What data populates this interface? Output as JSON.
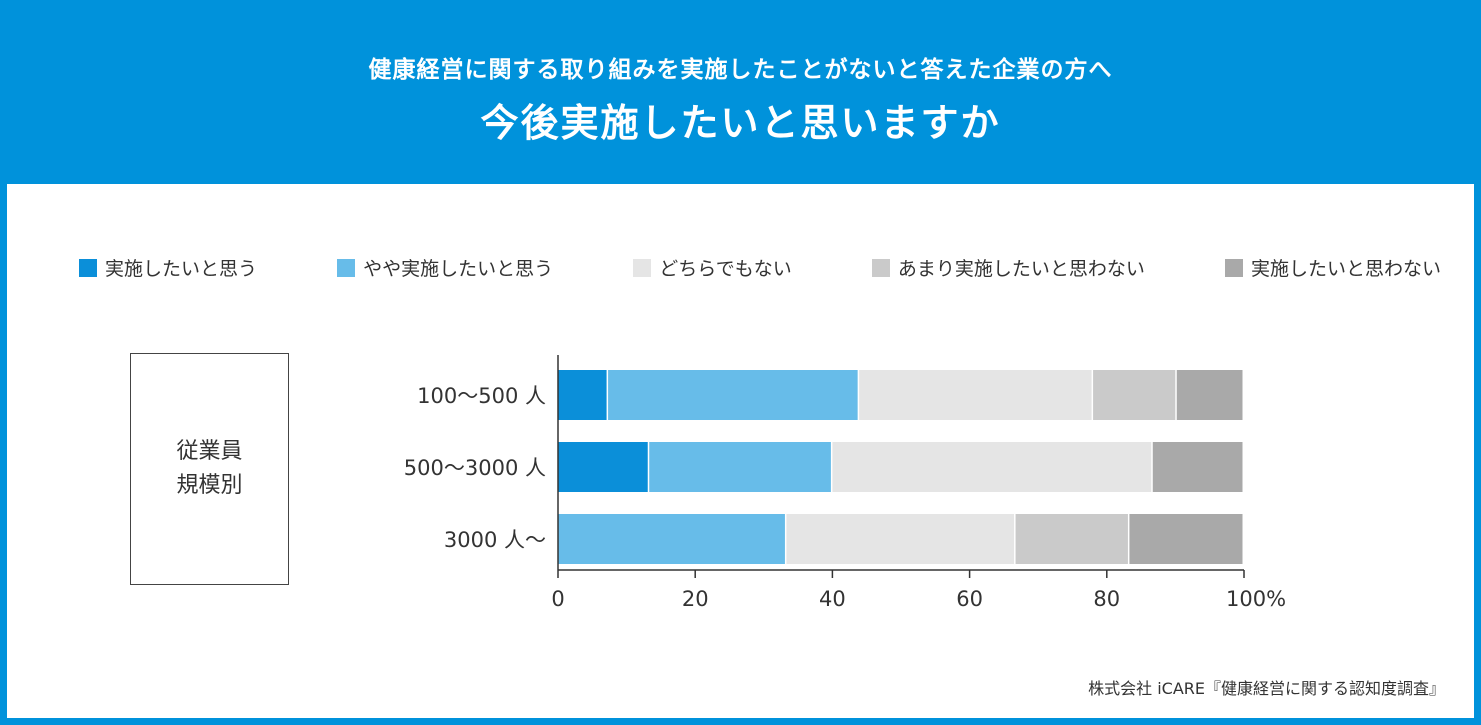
{
  "header": {
    "subtitle": "健康経営に関する取り組みを実施したことがないと答えた企業の方へ",
    "title": "今後実施したいと思いますか"
  },
  "side_label": {
    "line1": "従業員",
    "line2": "規模別"
  },
  "footer": "株式会社 iCARE『健康経営に関する認知度調査』",
  "colors": {
    "frame": "#0092db",
    "series": [
      "#0b8fd9",
      "#67bce9",
      "#e5e5e5",
      "#cacaca",
      "#a9a9a9"
    ]
  },
  "chart_data": {
    "type": "bar",
    "orientation": "horizontal",
    "stacked": true,
    "title": "今後実施したいと思いますか",
    "categories": [
      "100〜500 人",
      "500〜3000 人",
      "3000 人〜"
    ],
    "series": [
      {
        "name": "実施したいと思う",
        "values": [
          7.3,
          13.3,
          0
        ]
      },
      {
        "name": "やや実施したいと思う",
        "values": [
          36.6,
          26.7,
          33.3
        ]
      },
      {
        "name": "どちらでもない",
        "values": [
          34.1,
          46.7,
          33.4
        ]
      },
      {
        "name": "あまり実施したいと思わない",
        "values": [
          12.2,
          0,
          16.6
        ]
      },
      {
        "name": "実施したいと思わない",
        "values": [
          9.8,
          13.3,
          16.7
        ]
      }
    ],
    "xlim": [
      0,
      100
    ],
    "xticks": [
      "0",
      "20",
      "40",
      "60",
      "80",
      "100%"
    ],
    "xlabel": "",
    "ylabel": "",
    "legend_position": "top",
    "grid": false
  }
}
